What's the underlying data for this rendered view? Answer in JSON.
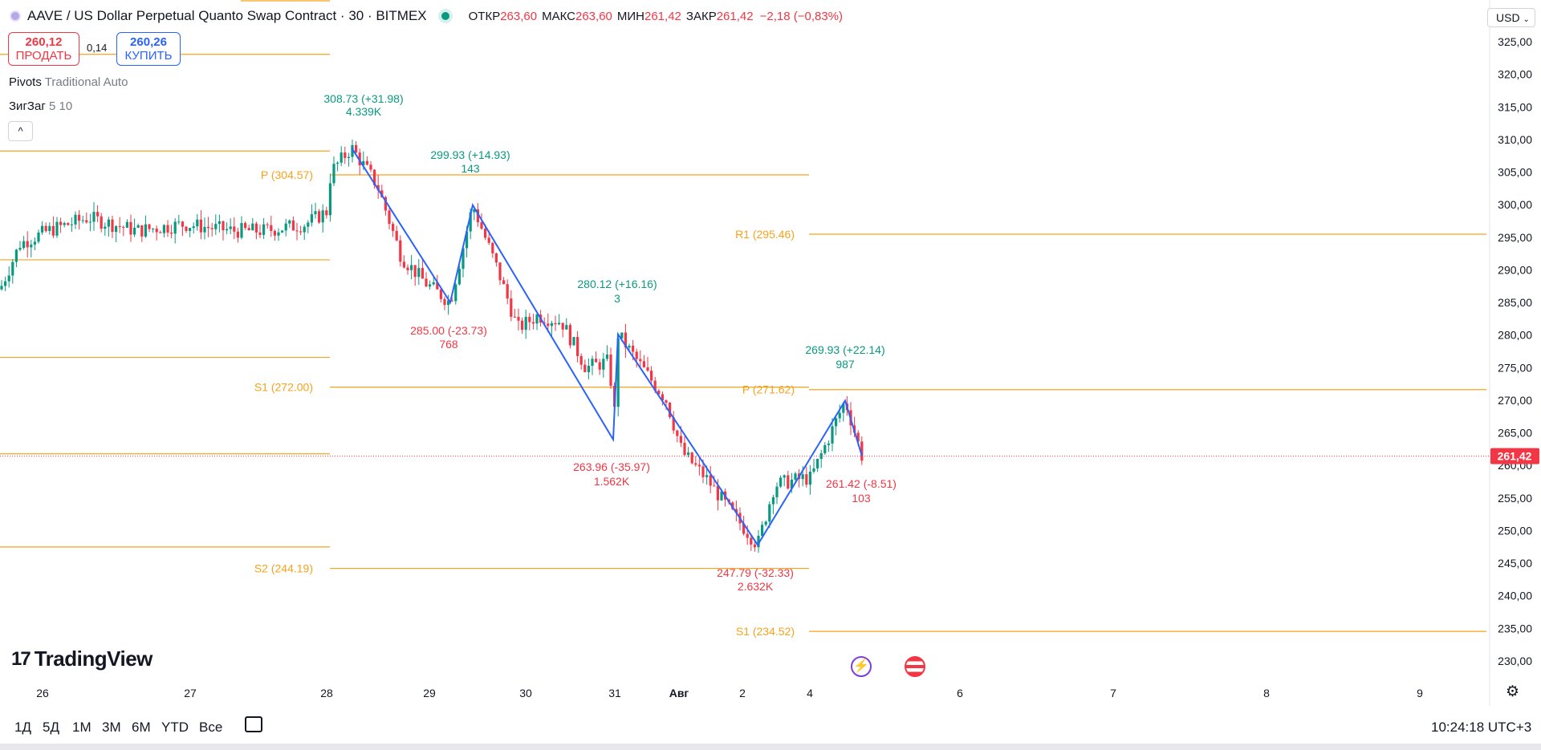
{
  "header": {
    "title": "AAVE / US Dollar Perpetual Quanto Swap Contract · 30 · BITMEX",
    "open_label": "ОТКР",
    "open_value": "263,60",
    "high_label": "МАКС",
    "high_value": "263,60",
    "low_label": "МИН",
    "low_value": "261,42",
    "close_label": "ЗАКР",
    "close_value": "261,42",
    "change": "−2,18 (−0,83%)"
  },
  "trade": {
    "sell_price": "260,12",
    "sell_label": "ПРОДАТЬ",
    "spread": "0,14",
    "buy_price": "260,26",
    "buy_label": "КУПИТЬ"
  },
  "indicators": {
    "pivots_name": "Pivots",
    "pivots_params": "Traditional Auto",
    "zigzag_name": "ЗигЗаг",
    "zigzag_params": "5 10",
    "collapse_icon": "chevron-up-icon"
  },
  "currency": "USD",
  "logo": "TradingView",
  "events": {
    "lightning": "lightning-icon",
    "flag": "us-flag-icon"
  },
  "timeframes": [
    "1Д",
    "5Д",
    "1M",
    "3M",
    "6M",
    "YTD",
    "Все"
  ],
  "clock": "10:24:18 UTC+3",
  "colors": {
    "up": "#089981",
    "down": "#f23645",
    "zigzag": "#2962ff",
    "pivot": "#f7a21b",
    "axis": "#131722"
  },
  "chart_data": {
    "type": "candlestick",
    "y_range": [
      226.7,
      328.6
    ],
    "y_ticks": [
      "325,00",
      "320,00",
      "315,00",
      "310,00",
      "305,00",
      "300,00",
      "295,00",
      "290,00",
      "285,00",
      "280,00",
      "275,00",
      "270,00",
      "265,00",
      "260,00",
      "255,00",
      "250,00",
      "245,00",
      "240,00",
      "235,00",
      "230,00"
    ],
    "y_tick_values": [
      325,
      320,
      315,
      310,
      305,
      300,
      295,
      290,
      285,
      280,
      275,
      270,
      265,
      260,
      255,
      250,
      245,
      240,
      235,
      230
    ],
    "x_ticks": [
      "26",
      "27",
      "28",
      "29",
      "30",
      "31",
      "Авг",
      "2",
      "4",
      "6",
      "7",
      "8",
      "9"
    ],
    "last_price": {
      "label": "261,42",
      "value": 261.42
    },
    "pivot_levels": [
      {
        "period": 1,
        "values": [
          323.06,
          308.23,
          291.53,
          276.56,
          261.77,
          247.48
        ]
      },
      {
        "period": 2,
        "labels": [
          "P (304.57)",
          "S1 (272.00)",
          "S2 (244.19)"
        ],
        "values": [
          304.57,
          272.0,
          244.19
        ]
      },
      {
        "period": 3,
        "labels": [
          "R1 (295.46)",
          "P (271.62)",
          "S1 (234.52)"
        ],
        "values": [
          295.46,
          271.62,
          234.52
        ]
      }
    ],
    "zigzag_points": [
      {
        "x": "28",
        "y": 308.73,
        "label": "308.73 (+31.98)",
        "volume": "4.339K"
      },
      {
        "x": "29",
        "y": 285.0,
        "label": "285.00 (-23.73)",
        "volume": "768"
      },
      {
        "x": "29",
        "y": 299.93,
        "label": "299.93 (+14.93)",
        "volume": "143"
      },
      {
        "x": "31",
        "y": 263.96,
        "label": "263.96 (-35.97)",
        "volume": "1.562K"
      },
      {
        "x": "31",
        "y": 280.12,
        "label": "280.12 (+16.16)",
        "volume": "3"
      },
      {
        "x": "2",
        "y": 247.79,
        "label": "247.79 (-32.33)",
        "volume": "2.632K"
      },
      {
        "x": "4",
        "y": 269.93,
        "label": "269.93 (+22.14)",
        "volume": "987"
      },
      {
        "x": "4",
        "y": 261.42,
        "label": "261.42 (-8.51)",
        "volume": "103"
      }
    ]
  }
}
